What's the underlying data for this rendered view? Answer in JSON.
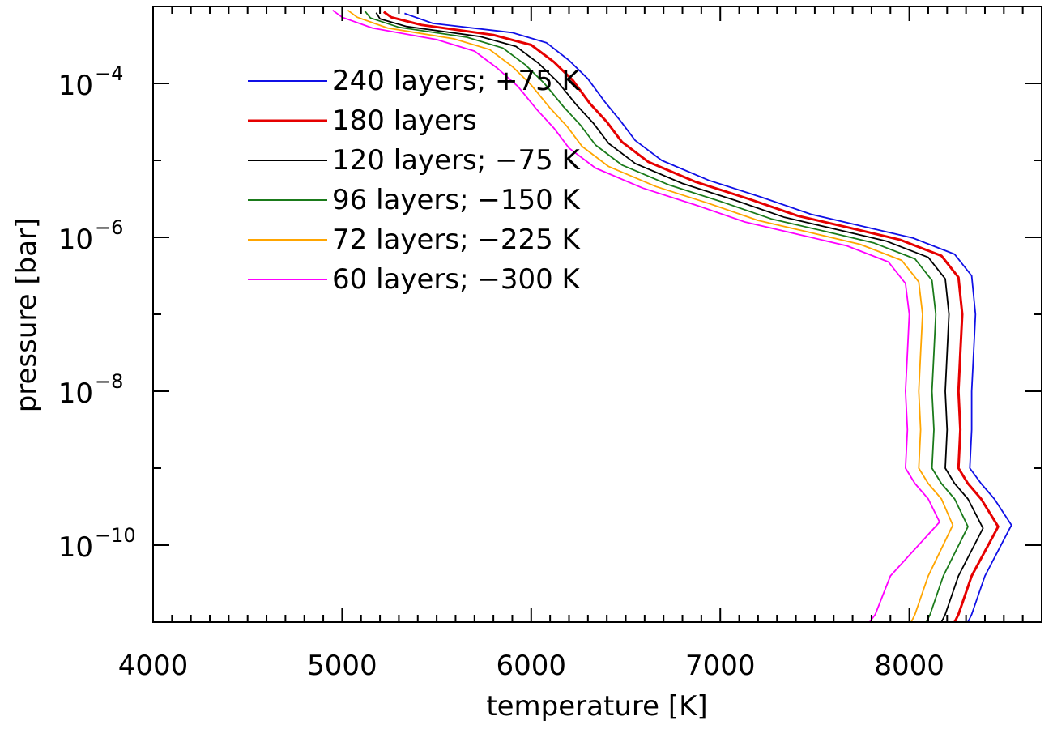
{
  "chart_data": {
    "type": "line",
    "xlabel": "temperature [K]",
    "ylabel": "pressure [bar]",
    "xlim": [
      4000,
      8700
    ],
    "ylim_log10": [
      -11,
      -3
    ],
    "y_scale": "log",
    "x_ticks": [
      {
        "value": 4000,
        "label": "4000"
      },
      {
        "value": 5000,
        "label": "5000"
      },
      {
        "value": 6000,
        "label": "6000"
      },
      {
        "value": 7000,
        "label": "7000"
      },
      {
        "value": 8000,
        "label": "8000"
      }
    ],
    "y_ticks": [
      {
        "log10": -10,
        "base": "10",
        "exp": "−10"
      },
      {
        "log10": -8,
        "base": "10",
        "exp": "−8"
      },
      {
        "log10": -6,
        "base": "10",
        "exp": "−6"
      },
      {
        "log10": -4,
        "base": "10",
        "exp": "−4"
      }
    ],
    "grid": false,
    "legend_position": "top-left",
    "series": [
      {
        "name": "240 layers; +75 K",
        "color": "#1010e6",
        "points": [
          [
            5330,
            -3.09
          ],
          [
            5480,
            -3.22
          ],
          [
            5900,
            -3.34
          ],
          [
            6080,
            -3.47
          ],
          [
            6200,
            -3.7
          ],
          [
            6300,
            -3.94
          ],
          [
            6390,
            -4.24
          ],
          [
            6470,
            -4.48
          ],
          [
            6550,
            -4.74
          ],
          [
            6690,
            -5.0
          ],
          [
            6940,
            -5.26
          ],
          [
            7220,
            -5.48
          ],
          [
            7480,
            -5.7
          ],
          [
            7760,
            -5.86
          ],
          [
            8020,
            -6.01
          ],
          [
            8240,
            -6.22
          ],
          [
            8330,
            -6.5
          ],
          [
            8350,
            -7.0
          ],
          [
            8340,
            -7.5
          ],
          [
            8330,
            -8.0
          ],
          [
            8330,
            -8.5
          ],
          [
            8320,
            -9.0
          ],
          [
            8380,
            -9.2
          ],
          [
            8450,
            -9.4
          ],
          [
            8540,
            -9.74
          ],
          [
            8400,
            -10.4
          ],
          [
            8330,
            -10.9
          ],
          [
            8310,
            -11.0
          ]
        ]
      },
      {
        "name": "180 layers",
        "color": "#e60000",
        "points": [
          [
            5220,
            -3.07
          ],
          [
            5260,
            -3.14
          ],
          [
            5420,
            -3.24
          ],
          [
            5800,
            -3.37
          ],
          [
            6000,
            -3.5
          ],
          [
            6120,
            -3.72
          ],
          [
            6220,
            -3.96
          ],
          [
            6310,
            -4.26
          ],
          [
            6400,
            -4.5
          ],
          [
            6480,
            -4.76
          ],
          [
            6620,
            -5.02
          ],
          [
            6870,
            -5.28
          ],
          [
            7150,
            -5.5
          ],
          [
            7410,
            -5.72
          ],
          [
            7690,
            -5.88
          ],
          [
            7950,
            -6.03
          ],
          [
            8170,
            -6.24
          ],
          [
            8260,
            -6.52
          ],
          [
            8280,
            -7.0
          ],
          [
            8270,
            -7.5
          ],
          [
            8260,
            -8.0
          ],
          [
            8270,
            -8.5
          ],
          [
            8260,
            -9.0
          ],
          [
            8310,
            -9.2
          ],
          [
            8380,
            -9.4
          ],
          [
            8470,
            -9.76
          ],
          [
            8330,
            -10.4
          ],
          [
            8260,
            -10.9
          ],
          [
            8240,
            -11.0
          ]
        ]
      },
      {
        "name": "120 layers; −75 K",
        "color": "#000000",
        "points": [
          [
            5180,
            -3.08
          ],
          [
            5200,
            -3.16
          ],
          [
            5340,
            -3.26
          ],
          [
            5730,
            -3.39
          ],
          [
            5920,
            -3.52
          ],
          [
            6040,
            -3.74
          ],
          [
            6140,
            -3.98
          ],
          [
            6240,
            -4.28
          ],
          [
            6330,
            -4.52
          ],
          [
            6410,
            -4.78
          ],
          [
            6550,
            -5.04
          ],
          [
            6800,
            -5.3
          ],
          [
            7080,
            -5.52
          ],
          [
            7340,
            -5.74
          ],
          [
            7620,
            -5.9
          ],
          [
            7880,
            -6.05
          ],
          [
            8100,
            -6.26
          ],
          [
            8190,
            -6.54
          ],
          [
            8210,
            -7.0
          ],
          [
            8200,
            -7.5
          ],
          [
            8190,
            -8.0
          ],
          [
            8200,
            -8.5
          ],
          [
            8190,
            -9.0
          ],
          [
            8240,
            -9.2
          ],
          [
            8310,
            -9.4
          ],
          [
            8390,
            -9.78
          ],
          [
            8260,
            -10.4
          ],
          [
            8190,
            -10.9
          ],
          [
            8170,
            -11.0
          ]
        ]
      },
      {
        "name": "96 layers; −150 K",
        "color": "#1a7a1a",
        "points": [
          [
            5120,
            -3.06
          ],
          [
            5150,
            -3.15
          ],
          [
            5300,
            -3.27
          ],
          [
            5660,
            -3.4
          ],
          [
            5850,
            -3.54
          ],
          [
            5970,
            -3.76
          ],
          [
            6070,
            -4.0
          ],
          [
            6170,
            -4.3
          ],
          [
            6260,
            -4.54
          ],
          [
            6340,
            -4.8
          ],
          [
            6480,
            -5.06
          ],
          [
            6730,
            -5.32
          ],
          [
            7010,
            -5.54
          ],
          [
            7270,
            -5.76
          ],
          [
            7550,
            -5.92
          ],
          [
            7810,
            -6.07
          ],
          [
            8030,
            -6.28
          ],
          [
            8120,
            -6.56
          ],
          [
            8140,
            -7.0
          ],
          [
            8130,
            -7.5
          ],
          [
            8120,
            -8.0
          ],
          [
            8130,
            -8.5
          ],
          [
            8120,
            -9.0
          ],
          [
            8170,
            -9.2
          ],
          [
            8240,
            -9.4
          ],
          [
            8310,
            -9.76
          ],
          [
            8180,
            -10.4
          ],
          [
            8110,
            -10.9
          ],
          [
            8090,
            -11.0
          ]
        ]
      },
      {
        "name": "72 layers; −225 K",
        "color": "#ffa500",
        "points": [
          [
            5030,
            -3.05
          ],
          [
            5080,
            -3.14
          ],
          [
            5240,
            -3.28
          ],
          [
            5590,
            -3.42
          ],
          [
            5780,
            -3.56
          ],
          [
            5900,
            -3.78
          ],
          [
            6000,
            -4.02
          ],
          [
            6100,
            -4.32
          ],
          [
            6190,
            -4.56
          ],
          [
            6270,
            -4.82
          ],
          [
            6410,
            -5.08
          ],
          [
            6660,
            -5.34
          ],
          [
            6940,
            -5.56
          ],
          [
            7200,
            -5.78
          ],
          [
            7480,
            -5.94
          ],
          [
            7740,
            -6.09
          ],
          [
            7960,
            -6.3
          ],
          [
            8050,
            -6.58
          ],
          [
            8070,
            -7.0
          ],
          [
            8060,
            -7.5
          ],
          [
            8050,
            -8.0
          ],
          [
            8060,
            -8.5
          ],
          [
            8050,
            -9.0
          ],
          [
            8100,
            -9.2
          ],
          [
            8170,
            -9.4
          ],
          [
            8230,
            -9.74
          ],
          [
            8100,
            -10.4
          ],
          [
            8030,
            -10.9
          ],
          [
            8010,
            -11.0
          ]
        ]
      },
      {
        "name": "60 layers; −300 K",
        "color": "#ff00ff",
        "points": [
          [
            4950,
            -3.05
          ],
          [
            5000,
            -3.14
          ],
          [
            5160,
            -3.28
          ],
          [
            5500,
            -3.43
          ],
          [
            5700,
            -3.58
          ],
          [
            5820,
            -3.8
          ],
          [
            5930,
            -4.04
          ],
          [
            6030,
            -4.34
          ],
          [
            6120,
            -4.58
          ],
          [
            6200,
            -4.84
          ],
          [
            6340,
            -5.1
          ],
          [
            6590,
            -5.36
          ],
          [
            6870,
            -5.58
          ],
          [
            7130,
            -5.8
          ],
          [
            7410,
            -5.96
          ],
          [
            7670,
            -6.11
          ],
          [
            7890,
            -6.32
          ],
          [
            7980,
            -6.6
          ],
          [
            8000,
            -7.0
          ],
          [
            7990,
            -7.5
          ],
          [
            7980,
            -8.0
          ],
          [
            7990,
            -8.5
          ],
          [
            7980,
            -9.0
          ],
          [
            8030,
            -9.2
          ],
          [
            8100,
            -9.4
          ],
          [
            8160,
            -9.7
          ],
          [
            7900,
            -10.4
          ],
          [
            7820,
            -10.9
          ],
          [
            7790,
            -11.0
          ]
        ]
      }
    ]
  }
}
